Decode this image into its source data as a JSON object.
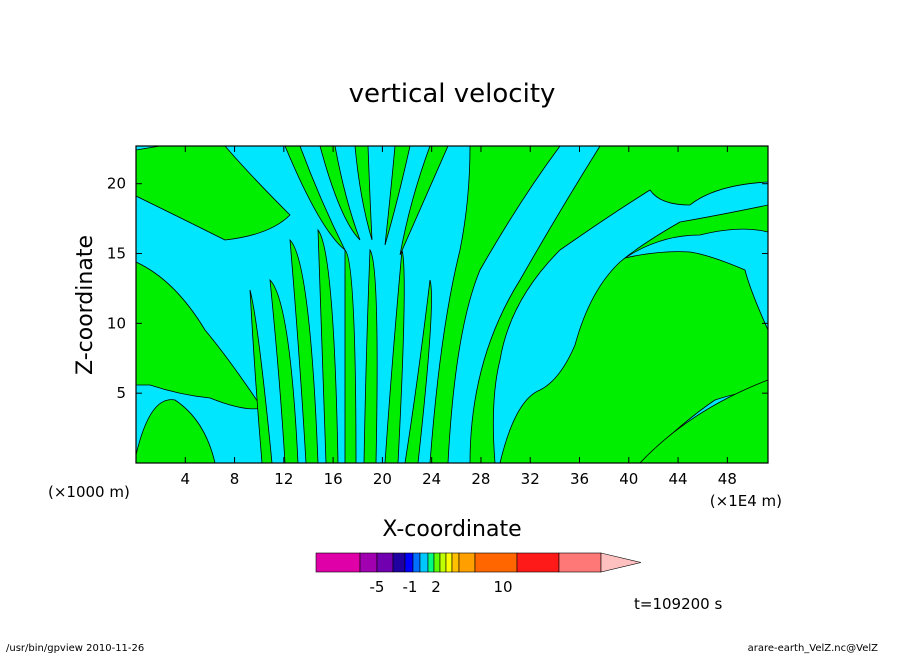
{
  "chart_data": {
    "type": "heatmap",
    "title": "vertical velocity",
    "xlabel": "X-coordinate",
    "ylabel": "Z-coordinate",
    "x_ticks": [
      4,
      8,
      12,
      16,
      20,
      24,
      28,
      32,
      36,
      40,
      44,
      48
    ],
    "y_ticks": [
      5,
      10,
      15,
      20
    ],
    "xlim": [
      0,
      51.3
    ],
    "ylim": [
      0,
      22.7
    ],
    "x_unit_left": "(×1000 m)",
    "x_unit_right": "(×1E4 m)",
    "time_label": "t=109200 s",
    "colorbar": {
      "colors": [
        "#e000a8",
        "#a000b0",
        "#7000b0",
        "#2000a0",
        "#0000ff",
        "#0070ff",
        "#00c8ff",
        "#00ff80",
        "#60ff00",
        "#c0ff00",
        "#ffff00",
        "#ffc000",
        "#ffa000",
        "#ff6600",
        "#ff1a1a",
        "#ff7878",
        "#ffc0c0"
      ],
      "tick_labels": [
        "-5",
        "-1",
        "2",
        "10"
      ]
    },
    "fill_colors": {
      "negative": "#00e6ff",
      "positive": "#00ee00"
    }
  },
  "footer": {
    "left": "/usr/bin/gpview   2010-11-26",
    "right": "arare-earth_VelZ.nc@VelZ"
  }
}
